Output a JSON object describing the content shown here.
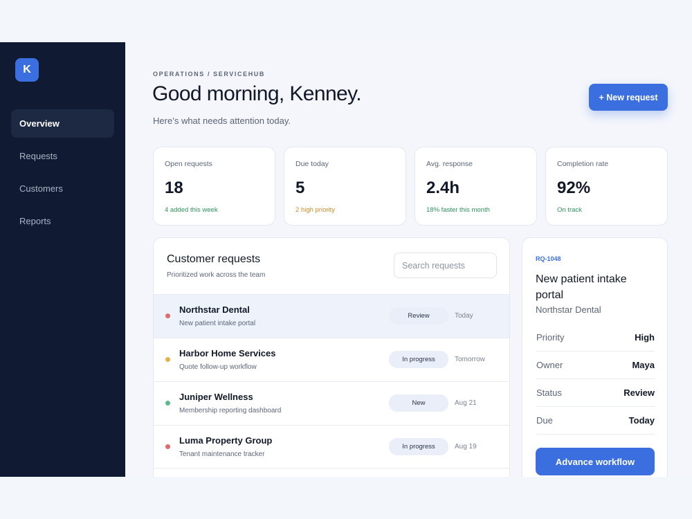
{
  "sidebar": {
    "logo": "K",
    "nav": [
      "Overview",
      "Requests",
      "Customers",
      "Reports"
    ]
  },
  "header": {
    "breadcrumb": "OPERATIONS / SERVICEHUB",
    "title": "Good morning, Kenney.",
    "subtitle": "Here’s what needs attention today.",
    "button": "+ New request"
  },
  "stats": [
    {
      "label": "Open requests",
      "value": "18",
      "note": "4 added this week"
    },
    {
      "label": "Due today",
      "value": "5",
      "note": "2 high priority"
    },
    {
      "label": "Avg. response",
      "value": "2.4h",
      "note": "18% faster this month"
    },
    {
      "label": "Completion rate",
      "value": "92%",
      "note": "On track"
    }
  ],
  "requests": {
    "title": "Customer requests",
    "subtitle": "Prioritized work across the team",
    "search_placeholder": "Search requests",
    "rows": [
      {
        "name": "Northstar Dental",
        "description": "New patient intake portal",
        "status": "Review",
        "date": "Today"
      },
      {
        "name": "Harbor Home Services",
        "description": "Quote follow-up workflow",
        "status": "In progress",
        "date": "Tomorrow"
      },
      {
        "name": "Juniper Wellness",
        "description": "Membership reporting dashboard",
        "status": "New",
        "date": "Aug 21"
      },
      {
        "name": "Luma Property Group",
        "description": "Tenant maintenance tracker",
        "status": "In progress",
        "date": "Aug 19"
      }
    ]
  },
  "detail": {
    "id": "RQ-1048",
    "title": "New patient intake portal",
    "client": "Northstar Dental",
    "fields": [
      {
        "label": "Priority",
        "value": "High"
      },
      {
        "label": "Owner",
        "value": "Maya"
      },
      {
        "label": "Status",
        "value": "Review"
      },
      {
        "label": "Due",
        "value": "Today"
      }
    ],
    "button": "Advance workflow"
  }
}
